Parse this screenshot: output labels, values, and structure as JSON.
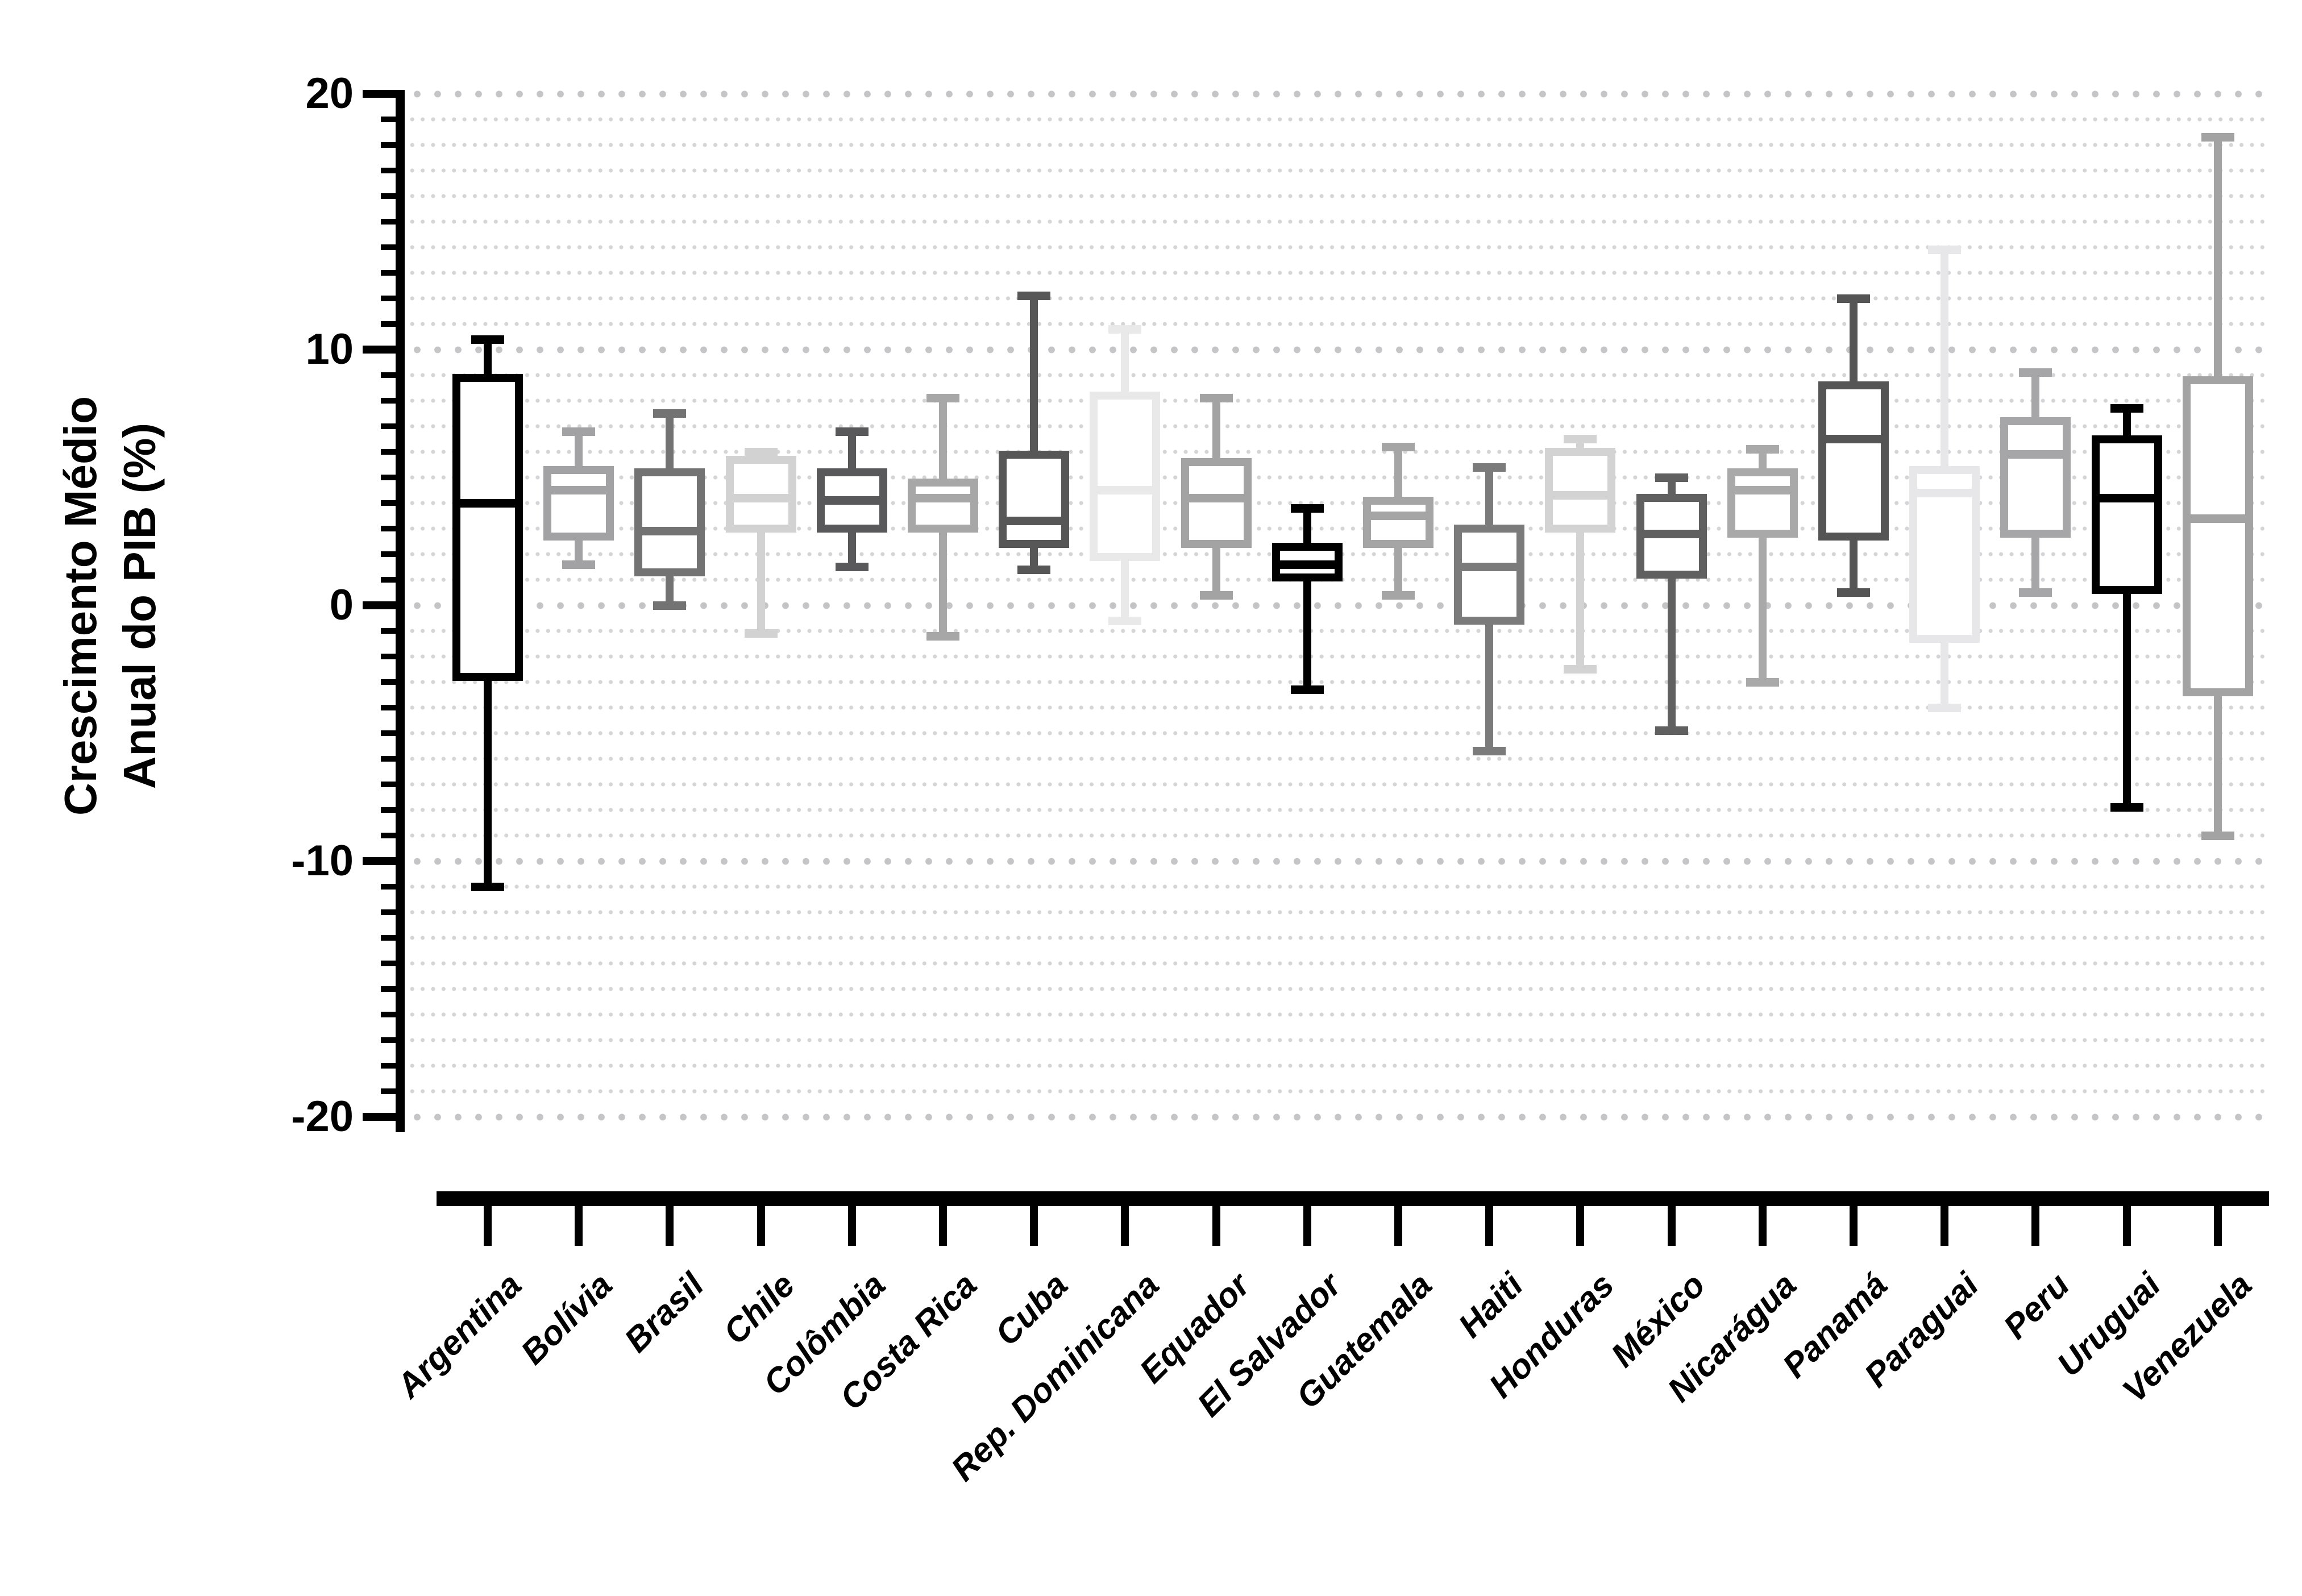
{
  "chart_data": {
    "type": "box",
    "title": "",
    "ylabel_line1": "Crescimento Médio",
    "ylabel_line2": "Anual do PIB (%)",
    "xlabel": "",
    "ylim": [
      -20,
      20
    ],
    "yticks": [
      20,
      10,
      0,
      -10,
      -20
    ],
    "ytick_labels": [
      "20",
      "10",
      "0",
      "-10",
      "-20"
    ],
    "minor_tick_interval": 1,
    "grid": "horizontal dotted rows: large dots at majors (every 10), small dots at every unit",
    "legend_position": "none",
    "colors": {
      "axis": "#000000",
      "major_dot": "#c5c5c7",
      "minor_dot": "#d5d5d7",
      "background": "#ffffff"
    },
    "categories": [
      "Argentina",
      "Bolívia",
      "Brasil",
      "Chile",
      "Colômbia",
      "Costa Rica",
      "Cuba",
      "Rep. Dominicana",
      "Equador",
      "El Salvador",
      "Guatemala",
      "Haiti",
      "Honduras",
      "México",
      "Nicarágua",
      "Panamá",
      "Paraguai",
      "Peru",
      "Uruguai",
      "Venezuela"
    ],
    "series": [
      {
        "name": "Argentina",
        "color": "#000000",
        "whisker_min": -11.0,
        "q1": -2.8,
        "median": 4.0,
        "q3": 8.9,
        "whisker_max": 10.4
      },
      {
        "name": "Bolívia",
        "color": "#a2a2a5",
        "whisker_min": 1.6,
        "q1": 2.7,
        "median": 4.5,
        "q3": 5.3,
        "whisker_max": 6.8
      },
      {
        "name": "Brasil",
        "color": "#737373",
        "whisker_min": 0.0,
        "q1": 1.3,
        "median": 2.9,
        "q3": 5.2,
        "whisker_max": 7.5
      },
      {
        "name": "Chile",
        "color": "#d2d2d2",
        "whisker_min": -1.1,
        "q1": 3.0,
        "median": 4.2,
        "q3": 5.7,
        "whisker_max": 6.0
      },
      {
        "name": "Colômbia",
        "color": "#59595b",
        "whisker_min": 1.5,
        "q1": 3.0,
        "median": 4.1,
        "q3": 5.2,
        "whisker_max": 6.8
      },
      {
        "name": "Costa Rica",
        "color": "#a7a7a7",
        "whisker_min": -1.2,
        "q1": 3.0,
        "median": 4.2,
        "q3": 4.8,
        "whisker_max": 8.1
      },
      {
        "name": "Cuba",
        "color": "#575757",
        "whisker_min": 1.4,
        "q1": 2.4,
        "median": 3.3,
        "q3": 5.9,
        "whisker_max": 12.1
      },
      {
        "name": "Rep. Dominicana",
        "color": "#e9e9e9",
        "whisker_min": -0.6,
        "q1": 1.9,
        "median": 4.5,
        "q3": 8.2,
        "whisker_max": 10.8
      },
      {
        "name": "Equador",
        "color": "#a3a3a3",
        "whisker_min": 0.4,
        "q1": 2.4,
        "median": 4.2,
        "q3": 5.6,
        "whisker_max": 8.1
      },
      {
        "name": "El Salvador",
        "color": "#000000",
        "whisker_min": -3.3,
        "q1": 1.1,
        "median": 1.6,
        "q3": 2.3,
        "whisker_max": 3.8
      },
      {
        "name": "Guatemala",
        "color": "#a5a5a5",
        "whisker_min": 0.4,
        "q1": 2.4,
        "median": 3.5,
        "q3": 4.1,
        "whisker_max": 6.2
      },
      {
        "name": "Haiti",
        "color": "#7b7b7b",
        "whisker_min": -5.7,
        "q1": -0.6,
        "median": 1.5,
        "q3": 3.0,
        "whisker_max": 5.4
      },
      {
        "name": "Honduras",
        "color": "#d3d3d3",
        "whisker_min": -2.5,
        "q1": 3.0,
        "median": 4.3,
        "q3": 6.0,
        "whisker_max": 6.5
      },
      {
        "name": "México",
        "color": "#606060",
        "whisker_min": -4.9,
        "q1": 1.2,
        "median": 2.8,
        "q3": 4.2,
        "whisker_max": 5.0
      },
      {
        "name": "Nicarágua",
        "color": "#a9a9a9",
        "whisker_min": -3.0,
        "q1": 2.8,
        "median": 4.5,
        "q3": 5.2,
        "whisker_max": 6.1
      },
      {
        "name": "Panamá",
        "color": "#555555",
        "whisker_min": 0.5,
        "q1": 2.7,
        "median": 6.5,
        "q3": 8.6,
        "whisker_max": 12.0
      },
      {
        "name": "Paraguai",
        "color": "#e7e7e9",
        "whisker_min": -4.0,
        "q1": -1.3,
        "median": 4.4,
        "q3": 5.3,
        "whisker_max": 13.9
      },
      {
        "name": "Peru",
        "color": "#a6a6a9",
        "whisker_min": 0.5,
        "q1": 2.8,
        "median": 5.9,
        "q3": 7.2,
        "whisker_max": 9.1
      },
      {
        "name": "Uruguai",
        "color": "#000000",
        "whisker_min": -7.9,
        "q1": 0.6,
        "median": 4.2,
        "q3": 6.5,
        "whisker_max": 7.7
      },
      {
        "name": "Venezuela",
        "color": "#a3a3a3",
        "whisker_min": -9.0,
        "q1": -3.4,
        "median": 3.4,
        "q3": 8.8,
        "whisker_max": 18.3
      }
    ]
  }
}
